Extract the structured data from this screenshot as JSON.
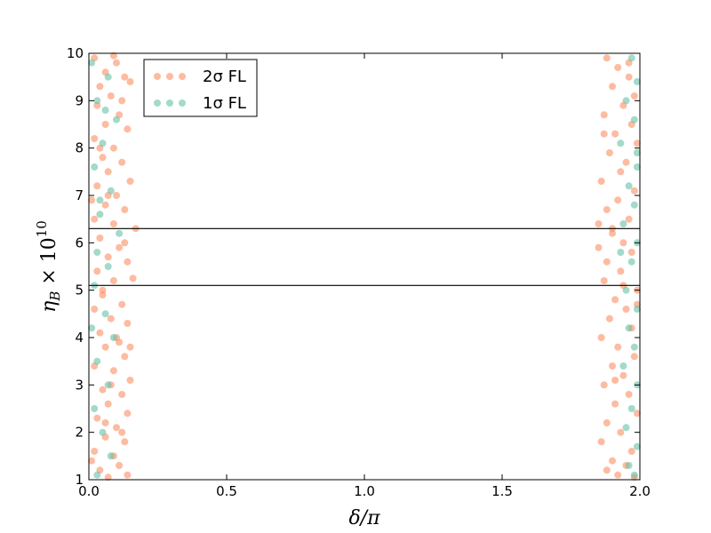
{
  "chart_data": {
    "type": "scatter",
    "xlabel": "δ/π",
    "ylabel_main": "η",
    "ylabel_sub": "B",
    "ylabel_times": " × 10",
    "ylabel_exp": "10",
    "xlim": [
      0.0,
      2.0
    ],
    "ylim": [
      1,
      10
    ],
    "xticks": [
      0.0,
      0.5,
      1.0,
      1.5,
      2.0
    ],
    "xtick_labels": [
      "0.0",
      "0.5",
      "1.0",
      "1.5",
      "2.0"
    ],
    "yticks": [
      1,
      2,
      3,
      4,
      5,
      6,
      7,
      8,
      9,
      10
    ],
    "ytick_labels": [
      "1",
      "2",
      "3",
      "4",
      "5",
      "6",
      "7",
      "8",
      "9",
      "10"
    ],
    "hlines": [
      5.1,
      6.3
    ],
    "grid": false,
    "legend_position": "top-left",
    "series": [
      {
        "name": "2σ FL",
        "color": "#fc8d62",
        "points": [
          [
            0.02,
            9.9
          ],
          [
            0.06,
            9.6
          ],
          [
            0.1,
            9.8
          ],
          [
            0.04,
            9.3
          ],
          [
            0.08,
            9.1
          ],
          [
            0.13,
            9.5
          ],
          [
            0.15,
            9.4
          ],
          [
            0.03,
            8.9
          ],
          [
            0.11,
            8.7
          ],
          [
            0.06,
            8.5
          ],
          [
            0.14,
            8.4
          ],
          [
            0.02,
            8.2
          ],
          [
            0.09,
            8.0
          ],
          [
            0.05,
            7.8
          ],
          [
            0.12,
            7.7
          ],
          [
            0.07,
            7.5
          ],
          [
            0.15,
            7.3
          ],
          [
            0.03,
            7.2
          ],
          [
            0.1,
            7.0
          ],
          [
            0.06,
            6.8
          ],
          [
            0.13,
            6.7
          ],
          [
            0.02,
            6.5
          ],
          [
            0.09,
            6.4
          ],
          [
            0.17,
            6.3
          ],
          [
            0.04,
            6.1
          ],
          [
            0.11,
            5.9
          ],
          [
            0.07,
            5.7
          ],
          [
            0.14,
            5.6
          ],
          [
            0.03,
            5.4
          ],
          [
            0.16,
            5.25
          ],
          [
            0.09,
            5.2
          ],
          [
            0.05,
            4.9
          ],
          [
            0.12,
            4.7
          ],
          [
            0.02,
            4.6
          ],
          [
            0.08,
            4.4
          ],
          [
            0.14,
            4.3
          ],
          [
            0.04,
            4.1
          ],
          [
            0.11,
            3.9
          ],
          [
            0.06,
            3.8
          ],
          [
            0.13,
            3.6
          ],
          [
            0.02,
            3.4
          ],
          [
            0.09,
            3.3
          ],
          [
            0.15,
            3.1
          ],
          [
            0.05,
            2.9
          ],
          [
            0.12,
            2.8
          ],
          [
            0.07,
            2.6
          ],
          [
            0.14,
            2.4
          ],
          [
            0.03,
            2.3
          ],
          [
            0.1,
            2.1
          ],
          [
            0.06,
            1.9
          ],
          [
            0.13,
            1.8
          ],
          [
            0.02,
            1.6
          ],
          [
            0.09,
            1.5
          ],
          [
            0.11,
            1.3
          ],
          [
            0.04,
            1.2
          ],
          [
            0.14,
            1.1
          ],
          [
            0.07,
            1.05
          ],
          [
            0.01,
            1.4
          ],
          [
            0.12,
            2.0
          ],
          [
            0.08,
            3.0
          ],
          [
            0.1,
            4.0
          ],
          [
            0.05,
            5.0
          ],
          [
            0.13,
            6.0
          ],
          [
            0.07,
            7.0
          ],
          [
            0.04,
            8.0
          ],
          [
            0.12,
            9.0
          ],
          [
            0.09,
            9.95
          ],
          [
            0.01,
            6.9
          ],
          [
            0.15,
            3.8
          ],
          [
            0.06,
            2.2
          ],
          [
            1.88,
            9.9
          ],
          [
            1.92,
            9.7
          ],
          [
            1.96,
            9.5
          ],
          [
            1.9,
            9.3
          ],
          [
            1.98,
            9.1
          ],
          [
            1.94,
            8.9
          ],
          [
            1.87,
            8.7
          ],
          [
            1.97,
            8.5
          ],
          [
            1.91,
            8.3
          ],
          [
            1.99,
            8.1
          ],
          [
            1.89,
            7.9
          ],
          [
            1.95,
            7.7
          ],
          [
            1.93,
            7.5
          ],
          [
            1.86,
            7.3
          ],
          [
            1.98,
            7.1
          ],
          [
            1.92,
            6.9
          ],
          [
            1.88,
            6.7
          ],
          [
            1.96,
            6.5
          ],
          [
            1.85,
            6.4
          ],
          [
            1.9,
            6.2
          ],
          [
            1.94,
            6.0
          ],
          [
            1.97,
            5.8
          ],
          [
            1.88,
            5.6
          ],
          [
            1.93,
            5.4
          ],
          [
            1.87,
            5.2
          ],
          [
            1.99,
            5.0
          ],
          [
            1.91,
            4.8
          ],
          [
            1.95,
            4.6
          ],
          [
            1.89,
            4.4
          ],
          [
            1.97,
            4.2
          ],
          [
            1.86,
            4.0
          ],
          [
            1.92,
            3.8
          ],
          [
            1.98,
            3.6
          ],
          [
            1.9,
            3.4
          ],
          [
            1.94,
            3.2
          ],
          [
            1.87,
            3.0
          ],
          [
            1.96,
            2.8
          ],
          [
            1.91,
            2.6
          ],
          [
            1.99,
            2.4
          ],
          [
            1.88,
            2.2
          ],
          [
            1.93,
            2.0
          ],
          [
            1.86,
            1.8
          ],
          [
            1.97,
            1.6
          ],
          [
            1.9,
            1.4
          ],
          [
            1.95,
            1.3
          ],
          [
            1.88,
            1.2
          ],
          [
            1.92,
            1.1
          ],
          [
            1.98,
            1.05
          ],
          [
            1.9,
            6.3
          ],
          [
            1.94,
            5.1
          ],
          [
            1.87,
            8.3
          ],
          [
            1.96,
            9.8
          ],
          [
            1.99,
            4.7
          ],
          [
            1.91,
            3.1
          ],
          [
            1.85,
            5.9
          ]
        ]
      },
      {
        "name": "1σ FL",
        "color": "#66c2a5",
        "points": [
          [
            0.01,
            9.8
          ],
          [
            0.07,
            9.5
          ],
          [
            0.03,
            9.0
          ],
          [
            0.1,
            8.6
          ],
          [
            0.05,
            8.1
          ],
          [
            0.02,
            7.6
          ],
          [
            0.08,
            7.1
          ],
          [
            0.04,
            6.6
          ],
          [
            0.11,
            6.2
          ],
          [
            0.03,
            5.8
          ],
          [
            0.07,
            5.5
          ],
          [
            0.02,
            5.1
          ],
          [
            0.06,
            4.5
          ],
          [
            0.09,
            4.0
          ],
          [
            0.03,
            3.5
          ],
          [
            0.07,
            3.0
          ],
          [
            0.02,
            2.5
          ],
          [
            0.05,
            2.0
          ],
          [
            0.08,
            1.5
          ],
          [
            0.03,
            1.1
          ],
          [
            0.01,
            4.2
          ],
          [
            0.04,
            6.9
          ],
          [
            0.06,
            8.8
          ],
          [
            1.97,
            9.9
          ],
          [
            1.99,
            9.4
          ],
          [
            1.95,
            9.0
          ],
          [
            1.98,
            8.6
          ],
          [
            1.93,
            8.1
          ],
          [
            1.99,
            7.6
          ],
          [
            1.96,
            7.2
          ],
          [
            1.98,
            6.8
          ],
          [
            1.94,
            6.4
          ],
          [
            1.99,
            6.0
          ],
          [
            1.97,
            5.6
          ],
          [
            1.95,
            5.0
          ],
          [
            1.99,
            4.6
          ],
          [
            1.96,
            4.2
          ],
          [
            1.98,
            3.8
          ],
          [
            1.94,
            3.4
          ],
          [
            1.99,
            3.0
          ],
          [
            1.97,
            2.5
          ],
          [
            1.95,
            2.1
          ],
          [
            1.99,
            1.7
          ],
          [
            1.96,
            1.3
          ],
          [
            1.98,
            1.1
          ],
          [
            1.93,
            5.8
          ],
          [
            1.99,
            7.9
          ]
        ]
      }
    ]
  }
}
